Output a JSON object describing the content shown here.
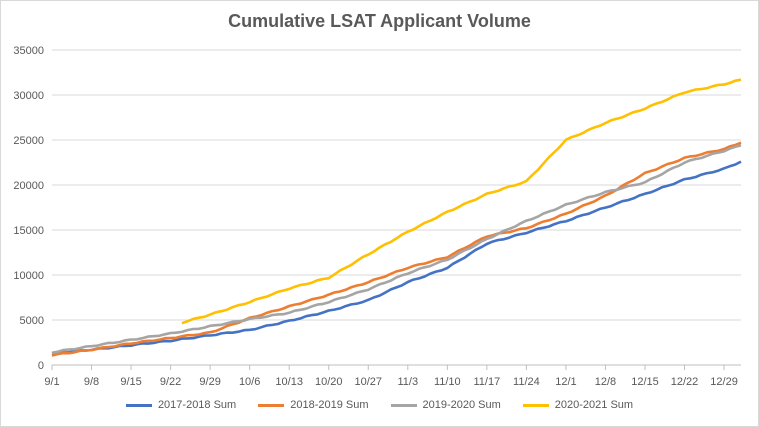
{
  "chart_data": {
    "type": "line",
    "title": "Cumulative LSAT Applicant Volume",
    "xlabel": "",
    "ylabel": "",
    "ylim": [
      0,
      35000
    ],
    "yticks": [
      0,
      5000,
      10000,
      15000,
      20000,
      25000,
      30000,
      35000
    ],
    "x_tick_labels": [
      "9/1",
      "9/8",
      "9/15",
      "9/22",
      "9/29",
      "10/6",
      "10/13",
      "10/20",
      "10/27",
      "11/3",
      "11/10",
      "11/17",
      "11/24",
      "12/1",
      "12/8",
      "12/15",
      "12/22",
      "12/29"
    ],
    "x_day_range": [
      0,
      122
    ],
    "grid": "horizontal",
    "legend_position": "bottom",
    "series": [
      {
        "name": "2017-2018 Sum",
        "color": "#4472c4",
        "x": [
          0,
          7,
          14,
          21,
          28,
          35,
          42,
          49,
          56,
          63,
          70,
          77,
          84,
          91,
          98,
          105,
          112,
          119,
          122
        ],
        "values": [
          1300,
          1700,
          2200,
          2700,
          3300,
          3900,
          4900,
          6000,
          7200,
          9200,
          10800,
          13500,
          14700,
          16000,
          17500,
          19000,
          20600,
          21800,
          22600
        ]
      },
      {
        "name": "2018-2019 Sum",
        "color": "#ed7d31",
        "x": [
          0,
          7,
          14,
          21,
          28,
          35,
          42,
          49,
          56,
          63,
          70,
          77,
          84,
          91,
          98,
          105,
          112,
          119,
          122
        ],
        "values": [
          1100,
          1700,
          2400,
          3000,
          3600,
          5200,
          6500,
          7800,
          9200,
          10800,
          12000,
          14300,
          15200,
          16800,
          18800,
          21300,
          23000,
          24000,
          24700
        ]
      },
      {
        "name": "2019-2020 Sum",
        "color": "#a5a5a5",
        "x": [
          0,
          7,
          14,
          21,
          28,
          35,
          42,
          49,
          56,
          63,
          70,
          77,
          84,
          91,
          98,
          105,
          112,
          119,
          122
        ],
        "values": [
          1400,
          2100,
          2800,
          3500,
          4300,
          5100,
          5800,
          7000,
          8400,
          10200,
          11700,
          14000,
          16000,
          17800,
          19200,
          20300,
          22500,
          23800,
          24400
        ]
      },
      {
        "name": "2020-2021 Sum",
        "color": "#ffc000",
        "x": [
          23,
          28,
          35,
          42,
          49,
          56,
          63,
          70,
          77,
          84,
          91,
          98,
          105,
          112,
          119,
          122
        ],
        "values": [
          4700,
          5600,
          7000,
          8500,
          9700,
          12300,
          14800,
          17000,
          19000,
          20400,
          25000,
          26900,
          28500,
          30300,
          31200,
          31700
        ]
      }
    ]
  }
}
